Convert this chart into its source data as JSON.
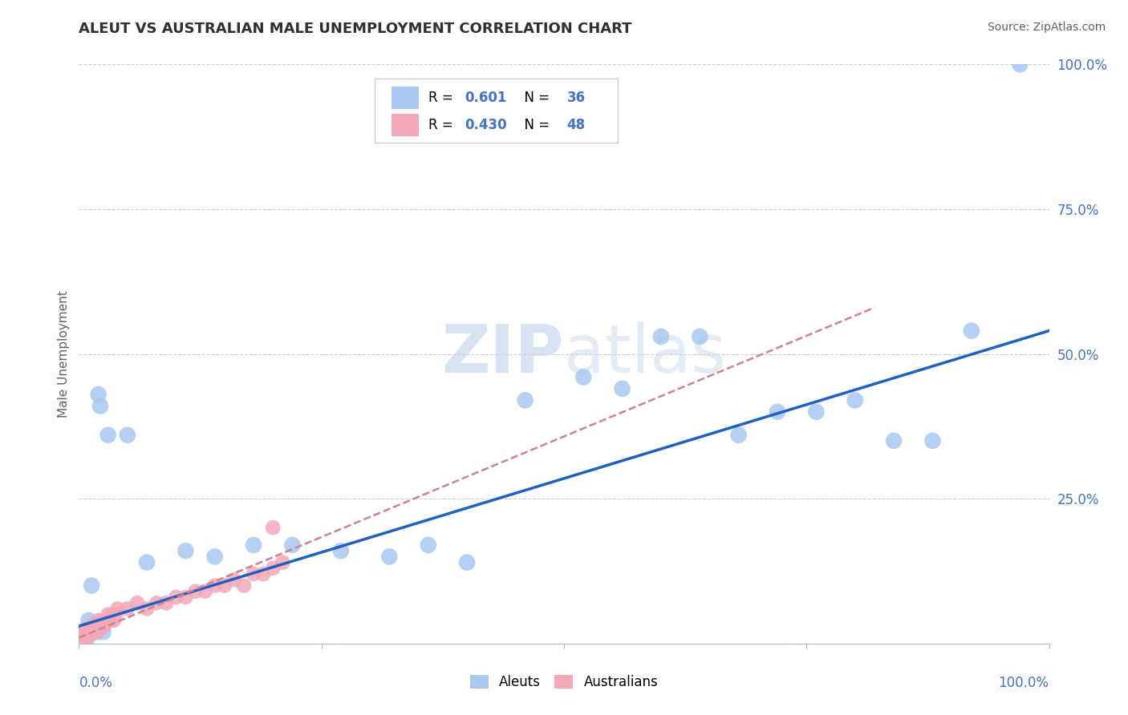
{
  "title": "ALEUT VS AUSTRALIAN MALE UNEMPLOYMENT CORRELATION CHART",
  "source": "Source: ZipAtlas.com",
  "ylabel": "Male Unemployment",
  "legend_labels": [
    "Aleuts",
    "Australians"
  ],
  "aleut_color": "#a8c8f0",
  "australian_color": "#f4a8b8",
  "line_aleut_color": "#2060c0",
  "line_australian_color": "#d08090",
  "watermark_color": "#c8d8ec",
  "background_color": "#ffffff",
  "grid_color": "#c8d0dc",
  "title_color": "#303030",
  "source_color": "#606060",
  "tick_label_color": "#4472c4",
  "ylabel_color": "#606060",
  "legend_text_color": "#000000",
  "legend_value_color": "#4472c4",
  "aleuts_x": [
    0.005,
    0.007,
    0.008,
    0.009,
    0.01,
    0.012,
    0.013,
    0.015,
    0.018,
    0.02,
    0.022,
    0.025,
    0.03,
    0.05,
    0.07,
    0.11,
    0.14,
    0.18,
    0.22,
    0.27,
    0.32,
    0.36,
    0.4,
    0.46,
    0.52,
    0.56,
    0.6,
    0.64,
    0.68,
    0.72,
    0.76,
    0.8,
    0.84,
    0.88,
    0.92,
    0.97
  ],
  "aleuts_y": [
    0.02,
    0.015,
    0.025,
    0.01,
    0.04,
    0.02,
    0.1,
    0.03,
    0.02,
    0.43,
    0.41,
    0.02,
    0.36,
    0.36,
    0.14,
    0.16,
    0.15,
    0.17,
    0.17,
    0.16,
    0.15,
    0.17,
    0.14,
    0.42,
    0.46,
    0.44,
    0.53,
    0.53,
    0.36,
    0.4,
    0.4,
    0.42,
    0.35,
    0.35,
    0.54,
    1.0
  ],
  "australians_x": [
    0.001,
    0.002,
    0.003,
    0.004,
    0.005,
    0.006,
    0.007,
    0.008,
    0.009,
    0.01,
    0.011,
    0.012,
    0.013,
    0.014,
    0.015,
    0.016,
    0.017,
    0.018,
    0.019,
    0.02,
    0.022,
    0.024,
    0.026,
    0.028,
    0.03,
    0.032,
    0.034,
    0.036,
    0.038,
    0.04,
    0.05,
    0.06,
    0.07,
    0.08,
    0.09,
    0.1,
    0.11,
    0.12,
    0.13,
    0.14,
    0.15,
    0.16,
    0.17,
    0.18,
    0.19,
    0.2,
    0.21,
    0.2
  ],
  "australians_y": [
    0.01,
    0.01,
    0.02,
    0.01,
    0.02,
    0.01,
    0.02,
    0.01,
    0.02,
    0.02,
    0.02,
    0.02,
    0.03,
    0.02,
    0.03,
    0.02,
    0.03,
    0.03,
    0.02,
    0.04,
    0.03,
    0.04,
    0.03,
    0.04,
    0.05,
    0.04,
    0.05,
    0.04,
    0.05,
    0.06,
    0.06,
    0.07,
    0.06,
    0.07,
    0.07,
    0.08,
    0.08,
    0.09,
    0.09,
    0.1,
    0.1,
    0.11,
    0.1,
    0.12,
    0.12,
    0.13,
    0.14,
    0.2
  ],
  "aleut_line_x": [
    0.0,
    1.0
  ],
  "aleut_line_y": [
    0.03,
    0.54
  ],
  "aus_line_x": [
    0.0,
    0.82
  ],
  "aus_line_y": [
    0.01,
    0.58
  ],
  "yticks": [
    0.0,
    0.25,
    0.5,
    0.75,
    1.0
  ],
  "ytick_labels": [
    "",
    "25.0%",
    "50.0%",
    "75.0%",
    "100.0%"
  ],
  "xticks": [
    0.0,
    0.25,
    0.5,
    0.75,
    1.0
  ]
}
